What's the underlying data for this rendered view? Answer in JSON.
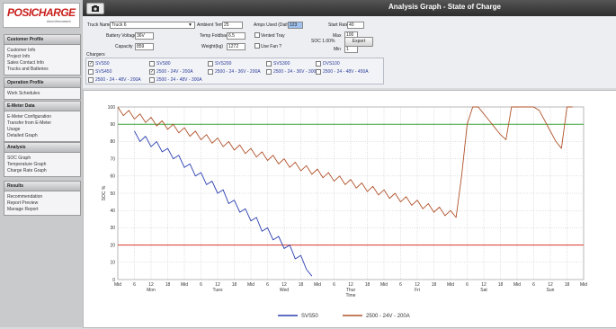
{
  "logo": {
    "brand": "POSICHARGE",
    "sub": "AeroVironment"
  },
  "sidebar": [
    {
      "title": "Customer Profile",
      "items": [
        "Customer Info",
        "Project Info",
        "Sales Contact Info",
        "Trucks and Batteries"
      ]
    },
    {
      "title": "Operation Profile",
      "items": [
        "Work Schedules"
      ]
    },
    {
      "title": "E-Meter Data",
      "items": [
        "E-Meter Configuration",
        "Transfer from E-Meter",
        "Usage",
        "Detailed Graph"
      ]
    },
    {
      "title": "Analysis",
      "items": [
        "SOC Graph",
        "Temperature Graph",
        "Charge Rate Graph"
      ]
    },
    {
      "title": "Results",
      "items": [
        "Recommendation",
        "Report Preview",
        "Manage Report"
      ]
    }
  ],
  "header": {
    "title": "Analysis Graph - State of Charge"
  },
  "controls": {
    "truck_name": {
      "label": "Truck Name",
      "value": "Truck 6"
    },
    "ambient_temp": {
      "label": "Ambient Temp",
      "value": "25"
    },
    "amps_used": {
      "label": "Amps Used (Daily)",
      "value": "123"
    },
    "start_rate": {
      "label": "Start Rate",
      "value": "40"
    },
    "battery_voltage": {
      "label": "Battery Voltage",
      "value": "36V"
    },
    "temp_foldback": {
      "label": "Temp Foldback",
      "value": "6.5"
    },
    "vented_tray": {
      "label": "Vented Tray"
    },
    "max": {
      "label": "Max",
      "value": "100"
    },
    "soc": "SOC 1.00%",
    "export": "Export",
    "capacity": {
      "label": "Capacity",
      "value": "859"
    },
    "weight": {
      "label": "Weight(kg)",
      "value": "1272"
    },
    "use_fan": {
      "label": "Use Fan ?"
    },
    "min": {
      "label": "Min",
      "value": "1"
    }
  },
  "chargers": {
    "title": "Chargers",
    "options": [
      {
        "name": "SVS50",
        "checked": true
      },
      {
        "name": "SVS80",
        "checked": false
      },
      {
        "name": "SVS200",
        "checked": false
      },
      {
        "name": "SVS300",
        "checked": false
      },
      {
        "name": "DVS100",
        "checked": false
      },
      {
        "name": "SVS450",
        "checked": false
      },
      {
        "name": "2500 - 24V - 200A",
        "checked": true
      },
      {
        "name": "2500 - 24 - 36V - 200A",
        "checked": false
      },
      {
        "name": "2500 - 24 - 36V - 300A",
        "checked": false
      },
      {
        "name": "2500 - 24 - 48V - 450A",
        "checked": false
      },
      {
        "name": "2500 - 24 - 48V - 200A",
        "checked": false
      },
      {
        "name": "2500 - 24 - 48V - 300A",
        "checked": false
      }
    ]
  },
  "chart_data": {
    "type": "line",
    "y_label": "SOC %",
    "x_label": "Time",
    "xlim": [
      0,
      168
    ],
    "ylim": [
      0,
      100
    ],
    "yticks": [
      0,
      10,
      20,
      30,
      40,
      50,
      60,
      70,
      80,
      90,
      100
    ],
    "xticks": [
      {
        "value": 0,
        "label": "Mid"
      },
      6,
      12,
      18,
      {
        "value": 24,
        "label": "Mid"
      },
      {
        "value": 30,
        "label": "6"
      },
      {
        "value": 36,
        "label": "12"
      },
      {
        "value": 42,
        "label": "18"
      },
      {
        "value": 48,
        "label": "Mid"
      },
      {
        "value": 54,
        "label": "6"
      },
      {
        "value": 60,
        "label": "12"
      },
      {
        "value": 66,
        "label": "18"
      },
      {
        "value": 72,
        "label": "Mid"
      },
      {
        "value": 78,
        "label": "6"
      },
      {
        "value": 84,
        "label": "12"
      },
      {
        "value": 90,
        "label": "18"
      },
      {
        "value": 96,
        "label": "Mid"
      },
      {
        "value": 102,
        "label": "6"
      },
      {
        "value": 108,
        "label": "12"
      },
      {
        "value": 114,
        "label": "18"
      },
      {
        "value": 120,
        "label": "Mid"
      },
      {
        "value": 126,
        "label": "6"
      },
      {
        "value": 132,
        "label": "12"
      },
      {
        "value": 138,
        "label": "18"
      },
      {
        "value": 144,
        "label": "Mid"
      },
      {
        "value": 150,
        "label": "6"
      },
      {
        "value": 156,
        "label": "12"
      },
      {
        "value": 162,
        "label": "18"
      },
      {
        "value": 168,
        "label": "Mid"
      }
    ],
    "day_labels": [
      {
        "value": 12,
        "label": "Mon"
      },
      {
        "value": 36,
        "label": "Tues"
      },
      {
        "value": 60,
        "label": "Wed"
      },
      {
        "value": 84,
        "label": "Thur"
      },
      {
        "value": 108,
        "label": "Fri"
      },
      {
        "value": 132,
        "label": "Sat"
      },
      {
        "value": 156,
        "label": "Sun"
      }
    ],
    "grid": true,
    "reference_lines": [
      {
        "value": 90,
        "color": "#3aa23a"
      },
      {
        "value": 20,
        "color": "#d9362b"
      }
    ],
    "x": [
      0,
      2,
      4,
      6,
      8,
      10,
      12,
      14,
      16,
      18,
      20,
      22,
      24,
      26,
      28,
      30,
      32,
      34,
      36,
      38,
      40,
      42,
      44,
      46,
      48,
      50,
      52,
      54,
      56,
      58,
      60,
      62,
      64,
      66,
      68,
      70,
      72,
      74,
      76,
      78,
      80,
      82,
      84,
      86,
      88,
      90,
      92,
      94,
      96,
      98,
      100,
      102,
      104,
      106,
      108,
      110,
      112,
      114,
      116,
      118,
      120,
      122,
      124,
      126,
      128,
      130,
      132,
      134,
      136,
      138,
      140,
      142,
      144,
      146,
      148,
      150,
      152,
      154,
      156,
      158,
      160,
      162,
      164,
      166,
      168
    ],
    "series": [
      {
        "name": "SVS50",
        "color": "#2b3fb0",
        "values": [
          null,
          null,
          null,
          86,
          80,
          83,
          77,
          80,
          74,
          76,
          70,
          72,
          65,
          67,
          60,
          62,
          55,
          57,
          50,
          52,
          44,
          46,
          39,
          41,
          34,
          36,
          28,
          30,
          23,
          25,
          18,
          20,
          12,
          14,
          6,
          2,
          null,
          null,
          null,
          null,
          null,
          null,
          null,
          null,
          null,
          null,
          null,
          null,
          null,
          null,
          null,
          null,
          null,
          null,
          null,
          null,
          null,
          null,
          null,
          null,
          null,
          null,
          null,
          null,
          null,
          null,
          null,
          null,
          null,
          null,
          null,
          null,
          null,
          null,
          null,
          null,
          null,
          null,
          null,
          null,
          null,
          null,
          null,
          null,
          null
        ]
      },
      {
        "name": "2500 - 24V - 200A",
        "color": "#b0522a",
        "values": [
          100,
          95,
          98,
          93,
          96,
          91,
          94,
          89,
          92,
          87,
          90,
          85,
          88,
          83,
          86,
          81,
          84,
          79,
          82,
          77,
          80,
          75,
          78,
          73,
          76,
          71,
          74,
          69,
          72,
          67,
          70,
          65,
          68,
          63,
          66,
          61,
          64,
          59,
          62,
          57,
          60,
          55,
          58,
          53,
          56,
          51,
          54,
          49,
          52,
          47,
          50,
          45,
          48,
          43,
          46,
          41,
          44,
          39,
          42,
          37,
          40,
          36,
          60,
          90,
          100,
          100,
          96,
          92,
          88,
          84,
          81,
          100,
          100,
          100,
          100,
          100,
          98,
          92,
          86,
          80,
          76,
          100,
          100,
          null,
          null
        ]
      }
    ]
  }
}
